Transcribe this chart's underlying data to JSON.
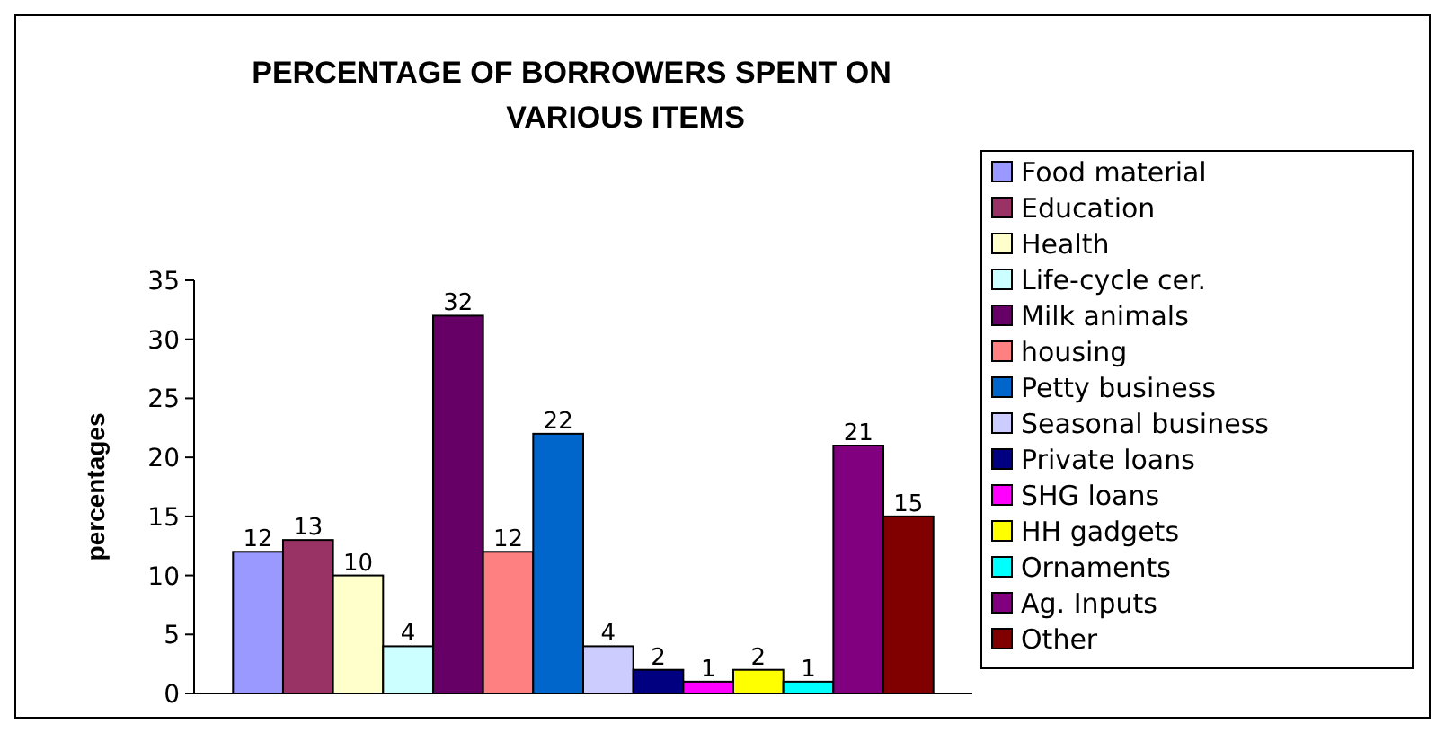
{
  "chart_data": {
    "type": "bar",
    "title": "PERCENTAGE OF BORROWERS SPENT ON VARIOUS ITEMS",
    "ylabel": "percentages",
    "categories": [
      null
    ],
    "ylim": [
      0,
      35
    ],
    "yticks": [
      0,
      5,
      10,
      15,
      20,
      25,
      30,
      35
    ],
    "grid": false,
    "legend": "right",
    "data_labels": true,
    "series": [
      {
        "name": "Food material",
        "color": "#9999ff",
        "values": [
          12
        ]
      },
      {
        "name": "Education",
        "color": "#993366",
        "values": [
          13
        ]
      },
      {
        "name": "Health",
        "color": "#ffffcc",
        "values": [
          10
        ]
      },
      {
        "name": "Life-cycle cer.",
        "color": "#ccffff",
        "values": [
          4
        ]
      },
      {
        "name": "Milk animals",
        "color": "#660066",
        "values": [
          32
        ]
      },
      {
        "name": "housing",
        "color": "#ff8080",
        "values": [
          12
        ]
      },
      {
        "name": "Petty business",
        "color": "#0066cc",
        "values": [
          22
        ]
      },
      {
        "name": "Seasonal business",
        "color": "#ccccff",
        "values": [
          4
        ]
      },
      {
        "name": "Private loans",
        "color": "#000080",
        "values": [
          2
        ]
      },
      {
        "name": "SHG loans",
        "color": "#ff00ff",
        "values": [
          1
        ]
      },
      {
        "name": "HH gadgets",
        "color": "#ffff00",
        "values": [
          2
        ]
      },
      {
        "name": "Ornaments",
        "color": "#00ffff",
        "values": [
          1
        ]
      },
      {
        "name": "Ag. Inputs",
        "color": "#800080",
        "values": [
          21
        ]
      },
      {
        "name": "Other",
        "color": "#800000",
        "values": [
          15
        ]
      }
    ]
  }
}
